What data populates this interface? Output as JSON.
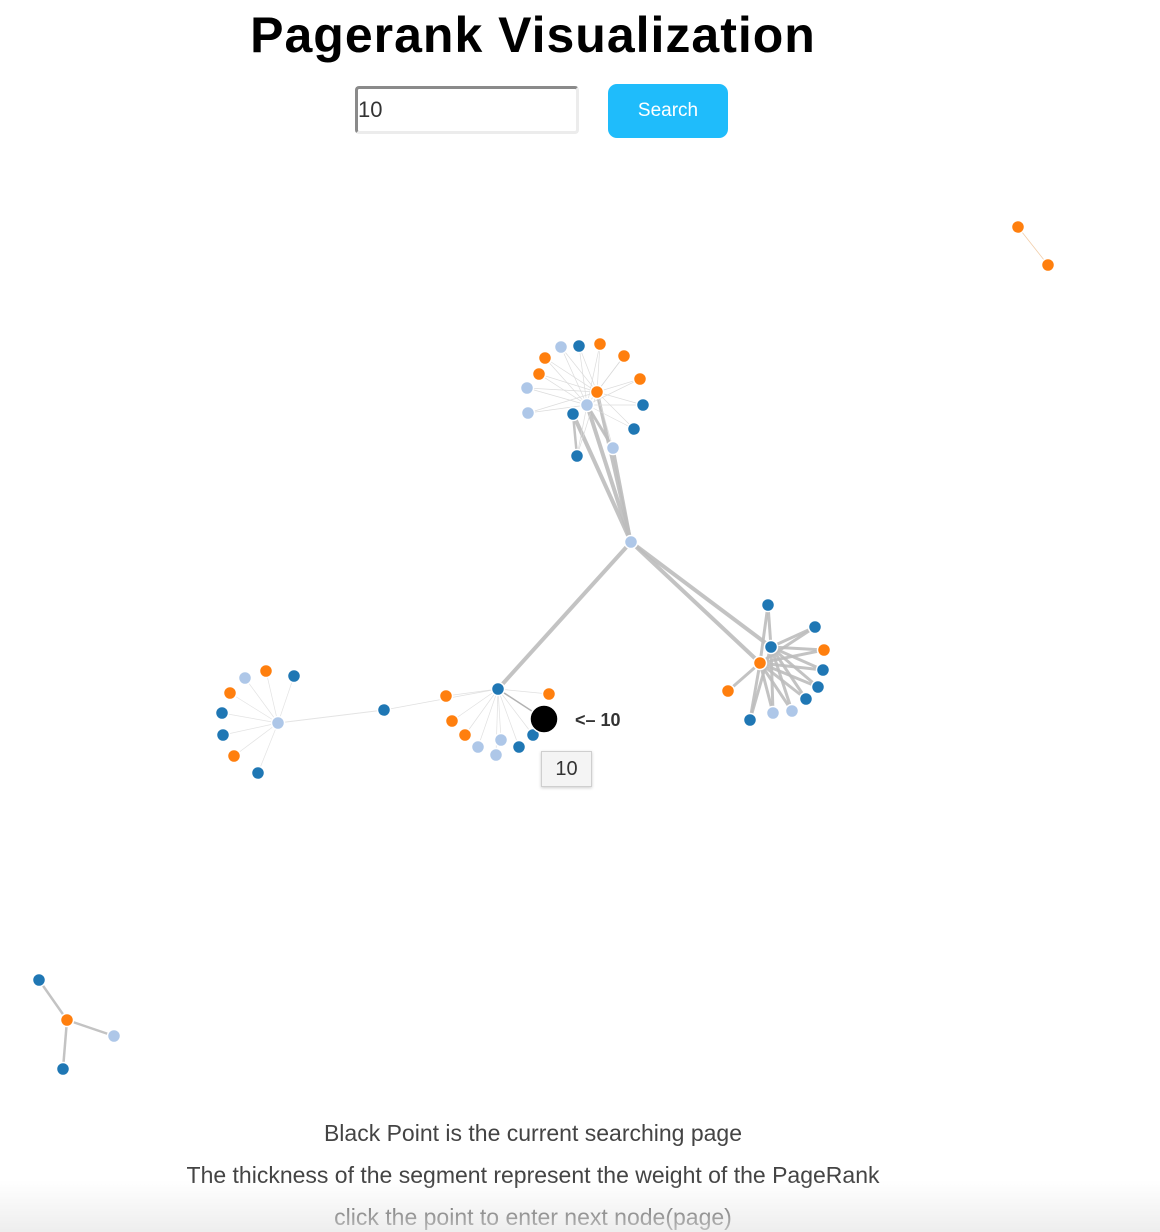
{
  "header": {
    "title": "Pagerank Visualization"
  },
  "search": {
    "value": "10",
    "button_label": "Search"
  },
  "graph": {
    "current_node_label": "<– 10",
    "tooltip": "10",
    "colors": {
      "dark_blue": "#1f77b4",
      "orange": "#ff7f0e",
      "light_blue": "#aec7e8",
      "current": "#000000",
      "edge": "#bdbdbd"
    }
  },
  "footer": {
    "line1": "Black Point is the current searching page",
    "line2": "The thickness of the segment represent the weight of the PageRank",
    "line3": "click the point to enter next node(page)"
  }
}
